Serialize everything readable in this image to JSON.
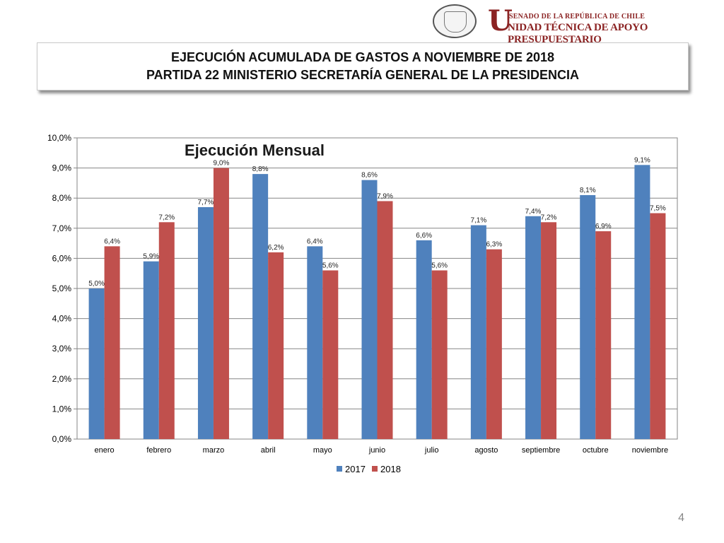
{
  "header": {
    "brand_top": "SENADO DE LA REPÚBLICA DE CHILE",
    "brand_initial": "U",
    "brand_rest": "NIDAD TÉCNICA DE APOYO PRESUPUESTARIO",
    "seal_text": "REPÚBLICA DE CHILE · SENADO"
  },
  "title": {
    "line1": "EJECUCIÓN ACUMULADA DE GASTOS A NOVIEMBRE DE 2018",
    "line2": "PARTIDA 22 MINISTERIO SECRETARÍA GENERAL DE LA PRESIDENCIA"
  },
  "chart_data": {
    "type": "bar",
    "title": "Ejecución Mensual",
    "categories": [
      "enero",
      "febrero",
      "marzo",
      "abril",
      "mayo",
      "junio",
      "julio",
      "agosto",
      "septiembre",
      "octubre",
      "noviembre"
    ],
    "series": [
      {
        "name": "2017",
        "color": "#4f81bd",
        "values": [
          5.0,
          5.9,
          7.7,
          8.8,
          6.4,
          8.6,
          6.6,
          7.1,
          7.4,
          8.1,
          9.1
        ],
        "labels": [
          "5,0%",
          "5,9%",
          "7,7%",
          "8,8%",
          "6,4%",
          "8,6%",
          "6,6%",
          "7,1%",
          "7,4%",
          "8,1%",
          "9,1%"
        ]
      },
      {
        "name": "2018",
        "color": "#c0504d",
        "values": [
          6.4,
          7.2,
          9.0,
          6.2,
          5.6,
          7.9,
          5.6,
          6.3,
          7.2,
          6.9,
          7.5
        ],
        "labels": [
          "6,4%",
          "7,2%",
          "9,0%",
          "6,2%",
          "5,6%",
          "7,9%",
          "5,6%",
          "6,3%",
          "7,2%",
          "6,9%",
          "7,5%"
        ]
      }
    ],
    "ylim": [
      0,
      10
    ],
    "yticks": [
      "0,0%",
      "1,0%",
      "2,0%",
      "3,0%",
      "4,0%",
      "5,0%",
      "6,0%",
      "7,0%",
      "8,0%",
      "9,0%",
      "10,0%"
    ],
    "grid": true,
    "legend_position": "bottom"
  },
  "page_number": "4"
}
